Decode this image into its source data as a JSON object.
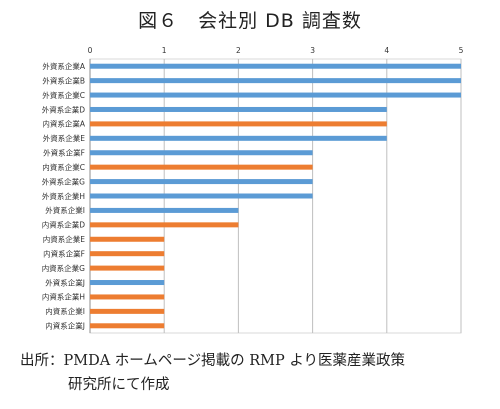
{
  "chart_data": {
    "type": "bar",
    "orientation": "horizontal",
    "title": "図６　会社別 DB 調査数",
    "xlim": [
      0,
      5
    ],
    "x_ticks": [
      "0",
      "1",
      "2",
      "3",
      "4",
      "5"
    ],
    "x_axis_position": "top",
    "grid": true,
    "legend": "none",
    "categories": [
      "外資系企業A",
      "外資系企業B",
      "外資系企業C",
      "外資系企業D",
      "内資系企業A",
      "外資系企業E",
      "外資系企業F",
      "内資系企業C",
      "外資系企業G",
      "外資系企業H",
      "外資系企業I",
      "内資系企業D",
      "内資系企業E",
      "内資系企業F",
      "内資系企業G",
      "外資系企業J",
      "内資系企業H",
      "内資系企業I",
      "内資系企業J"
    ],
    "values": [
      5,
      5,
      5,
      4,
      4,
      4,
      3,
      3,
      3,
      3,
      2,
      2,
      1,
      1,
      1,
      1,
      1,
      1,
      1
    ],
    "groups": [
      "foreign",
      "foreign",
      "foreign",
      "foreign",
      "domestic",
      "foreign",
      "foreign",
      "domestic",
      "foreign",
      "foreign",
      "foreign",
      "domestic",
      "domestic",
      "domestic",
      "domestic",
      "foreign",
      "domestic",
      "domestic",
      "domestic"
    ],
    "colors": {
      "foreign": "#5B9BD5",
      "domestic": "#ED7D31"
    }
  },
  "source": {
    "line1": "出所：PMDA ホームページ掲載の RMP より医薬産業政策",
    "line2": "研究所にて作成"
  }
}
